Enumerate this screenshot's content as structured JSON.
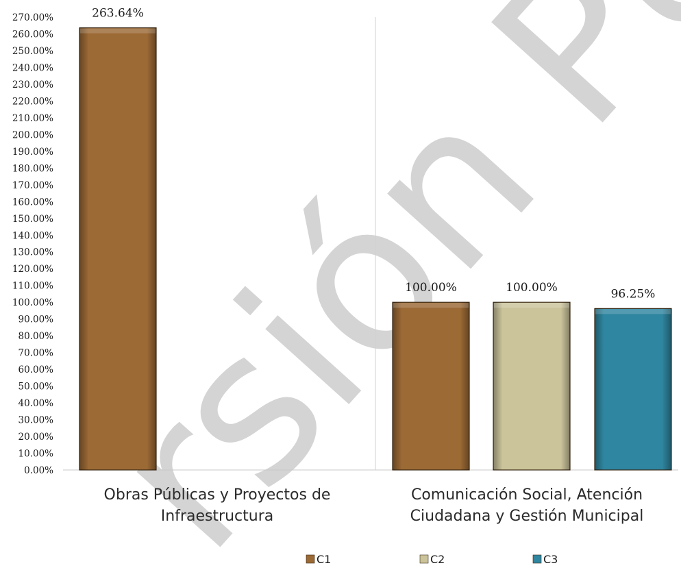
{
  "watermark": "rsión Públic",
  "chart_data": {
    "type": "bar",
    "ylim": [
      0,
      270
    ],
    "ytick_step": 10,
    "ytick_suffix": "%",
    "grid": false,
    "legend_position": "bottom",
    "series": [
      {
        "name": "C1",
        "color": "#9c6a35"
      },
      {
        "name": "C2",
        "color": "#cbc49b"
      },
      {
        "name": "C3",
        "color": "#2f86a0"
      }
    ],
    "groups": [
      {
        "label_lines": [
          "Obras Públicas y Proyectos de",
          "Infraestructura"
        ],
        "bars": [
          {
            "series": "C1",
            "value": 263.64,
            "label": "263.64%"
          }
        ]
      },
      {
        "label_lines": [
          "Comunicación Social, Atención",
          "Ciudadana y Gestión Municipal"
        ],
        "bars": [
          {
            "series": "C1",
            "value": 100.0,
            "label": "100.00%"
          },
          {
            "series": "C2",
            "value": 100.0,
            "label": "100.00%"
          },
          {
            "series": "C3",
            "value": 96.25,
            "label": "96.25%"
          }
        ]
      }
    ]
  }
}
